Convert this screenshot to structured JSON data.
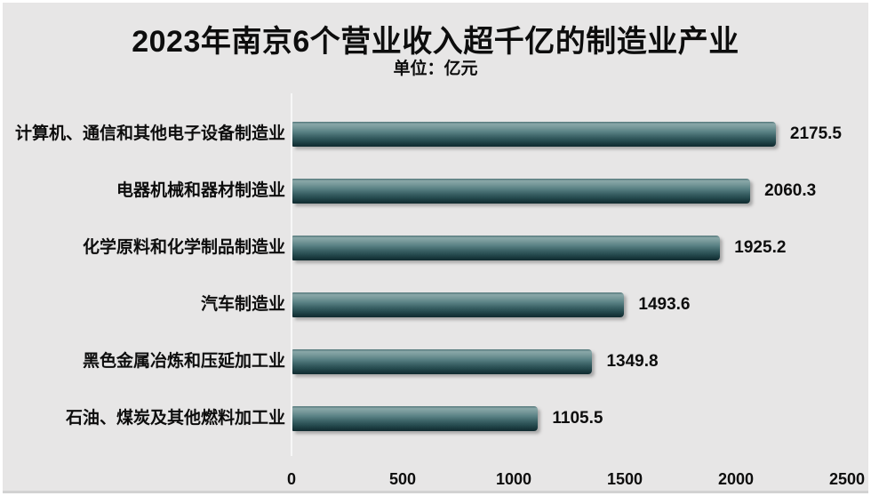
{
  "title": "2023年南京6个营业收入超千亿的制造业产业",
  "subtitle": "单位：亿元",
  "colors": {
    "background": "#e7e6e6",
    "frame": "#ffffff",
    "bottom_edge": "#d2d2d2",
    "text": "#0d0d0d",
    "axis_line": "#f7f7f7",
    "bar_edge_top": "#4f7376",
    "bar_highlight": "#8aa7a8",
    "bar_mid": "#3b6266",
    "bar_dark": "#143136",
    "bar_shadow": "rgba(110,110,110,0.5)"
  },
  "chart_data": {
    "type": "bar",
    "orientation": "horizontal",
    "title": "2023年南京6个营业收入超千亿的制造业产业",
    "subtitle": "单位：亿元",
    "unit": "亿元",
    "categories": [
      "计算机、通信和其他电子设备制造业",
      "电器机械和器材制造业",
      "化学原料和化学制品制造业",
      "汽车制造业",
      "黑色金属冶炼和压延加工业",
      "石油、煤炭及其他燃料加工业"
    ],
    "values": [
      2175.5,
      2060.3,
      1925.2,
      1493.6,
      1349.8,
      1105.5
    ],
    "value_labels": [
      "2175.5",
      "2060.3",
      "1925.2",
      "1493.6",
      "1349.8",
      "1105.5"
    ],
    "x_ticks": [
      "0",
      "500",
      "1000",
      "1500",
      "2000",
      "2500"
    ],
    "xlim": [
      0,
      2500
    ],
    "grid": false,
    "legend": false,
    "sorted": "descending"
  }
}
